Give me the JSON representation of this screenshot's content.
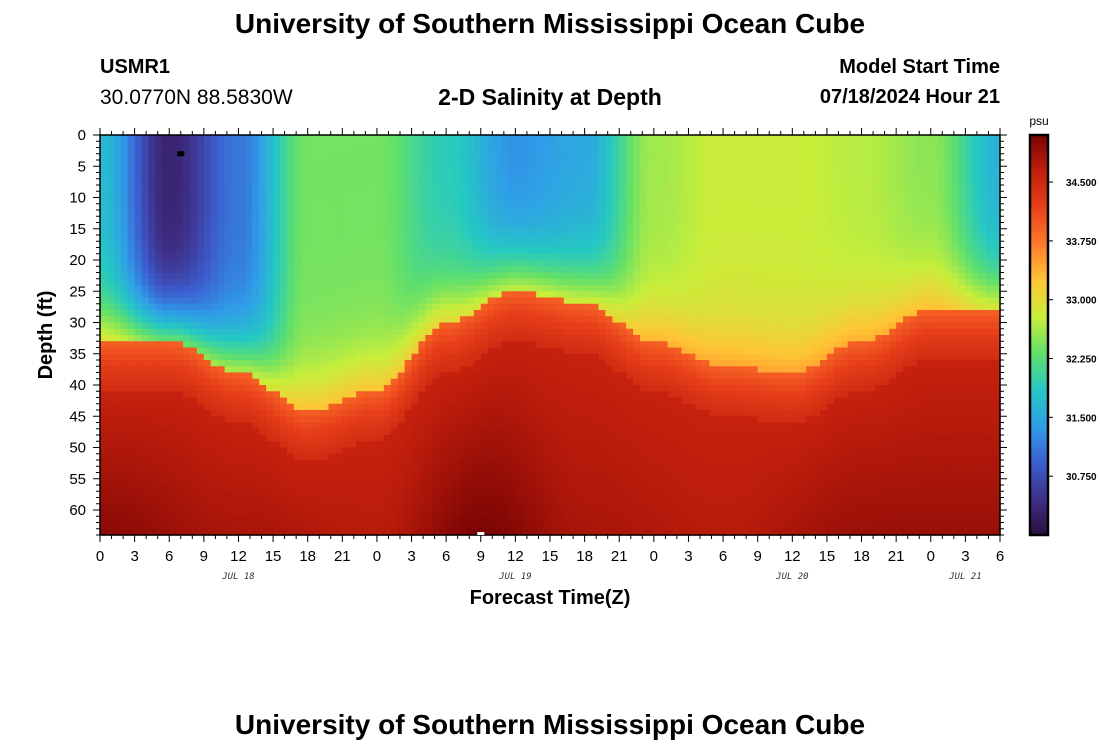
{
  "header": {
    "title": "University of Southern Mississippi Ocean Cube",
    "station_id": "USMR1",
    "location": "30.0770N  88.5830W",
    "subtitle": "2-D Salinity at Depth",
    "start_label": "Model Start Time",
    "start_value": "07/18/2024 Hour 21"
  },
  "footer": {
    "title": "University of Southern Mississippi Ocean Cube"
  },
  "colors": {
    "colormap": [
      "#2b0f3e",
      "#3f2f88",
      "#3c5fd0",
      "#2f9ee8",
      "#25c9c2",
      "#62e06a",
      "#c9ee3a",
      "#ffc535",
      "#ff7a2c",
      "#e8401a",
      "#c21f0d",
      "#7a0403"
    ],
    "axis": "#000000"
  },
  "chart_data": {
    "type": "heatmap",
    "title": "2-D Salinity at Depth",
    "xlabel": "Forecast Time(Z)",
    "ylabel": "Depth (ft)",
    "x_start_hour": 0,
    "x_end_hour": 78,
    "x_tick_step_hours": 3,
    "x_tick_labels": [
      "0",
      "3",
      "6",
      "9",
      "12",
      "15",
      "18",
      "21",
      "0",
      "3",
      "6",
      "9",
      "12",
      "15",
      "18",
      "21",
      "0",
      "3",
      "6",
      "9",
      "12",
      "15",
      "18",
      "21",
      "0",
      "3",
      "6"
    ],
    "day_labels": [
      {
        "label": "JUL 18",
        "hour": 12
      },
      {
        "label": "JUL 19",
        "hour": 36
      },
      {
        "label": "JUL 20",
        "hour": 60
      },
      {
        "label": "JUL 21",
        "hour": 75
      }
    ],
    "ylim": [
      0,
      64
    ],
    "y_ticks": [
      0,
      5,
      10,
      15,
      20,
      25,
      30,
      35,
      40,
      45,
      50,
      55,
      60
    ],
    "colorbar": {
      "unit": "psu",
      "range": [
        30.0,
        35.1
      ],
      "ticks": [
        30.75,
        31.5,
        32.25,
        33.0,
        33.75,
        34.5
      ],
      "tick_labels": [
        "30.750",
        "31.500",
        "32.250",
        "33.000",
        "33.750",
        "34.500"
      ]
    },
    "halocline_depth_ft": [
      {
        "hour": 0,
        "depth": 33
      },
      {
        "hour": 6,
        "depth": 33
      },
      {
        "hour": 12,
        "depth": 38
      },
      {
        "hour": 18,
        "depth": 44
      },
      {
        "hour": 24,
        "depth": 41
      },
      {
        "hour": 30,
        "depth": 30
      },
      {
        "hour": 36,
        "depth": 25
      },
      {
        "hour": 42,
        "depth": 27
      },
      {
        "hour": 48,
        "depth": 33
      },
      {
        "hour": 54,
        "depth": 37
      },
      {
        "hour": 60,
        "depth": 38
      },
      {
        "hour": 66,
        "depth": 33
      },
      {
        "hour": 72,
        "depth": 28
      },
      {
        "hour": 78,
        "depth": 28
      }
    ],
    "surface_salinity_psu": [
      {
        "hour": 0,
        "value": 31.7
      },
      {
        "hour": 6,
        "value": 30.3
      },
      {
        "hour": 12,
        "value": 31.1
      },
      {
        "hour": 18,
        "value": 32.4
      },
      {
        "hour": 24,
        "value": 32.4
      },
      {
        "hour": 30,
        "value": 31.9
      },
      {
        "hour": 36,
        "value": 31.3
      },
      {
        "hour": 42,
        "value": 31.5
      },
      {
        "hour": 48,
        "value": 32.6
      },
      {
        "hour": 54,
        "value": 32.8
      },
      {
        "hour": 60,
        "value": 32.8
      },
      {
        "hour": 66,
        "value": 32.7
      },
      {
        "hour": 72,
        "value": 32.5
      },
      {
        "hour": 78,
        "value": 31.6
      }
    ],
    "bottom_salinity_psu": [
      {
        "hour": 0,
        "value": 35.0
      },
      {
        "hour": 12,
        "value": 34.8
      },
      {
        "hour": 24,
        "value": 34.7
      },
      {
        "hour": 33,
        "value": 35.1
      },
      {
        "hour": 42,
        "value": 34.8
      },
      {
        "hour": 54,
        "value": 34.7
      },
      {
        "hour": 66,
        "value": 34.9
      },
      {
        "hour": 78,
        "value": 34.9
      }
    ]
  }
}
